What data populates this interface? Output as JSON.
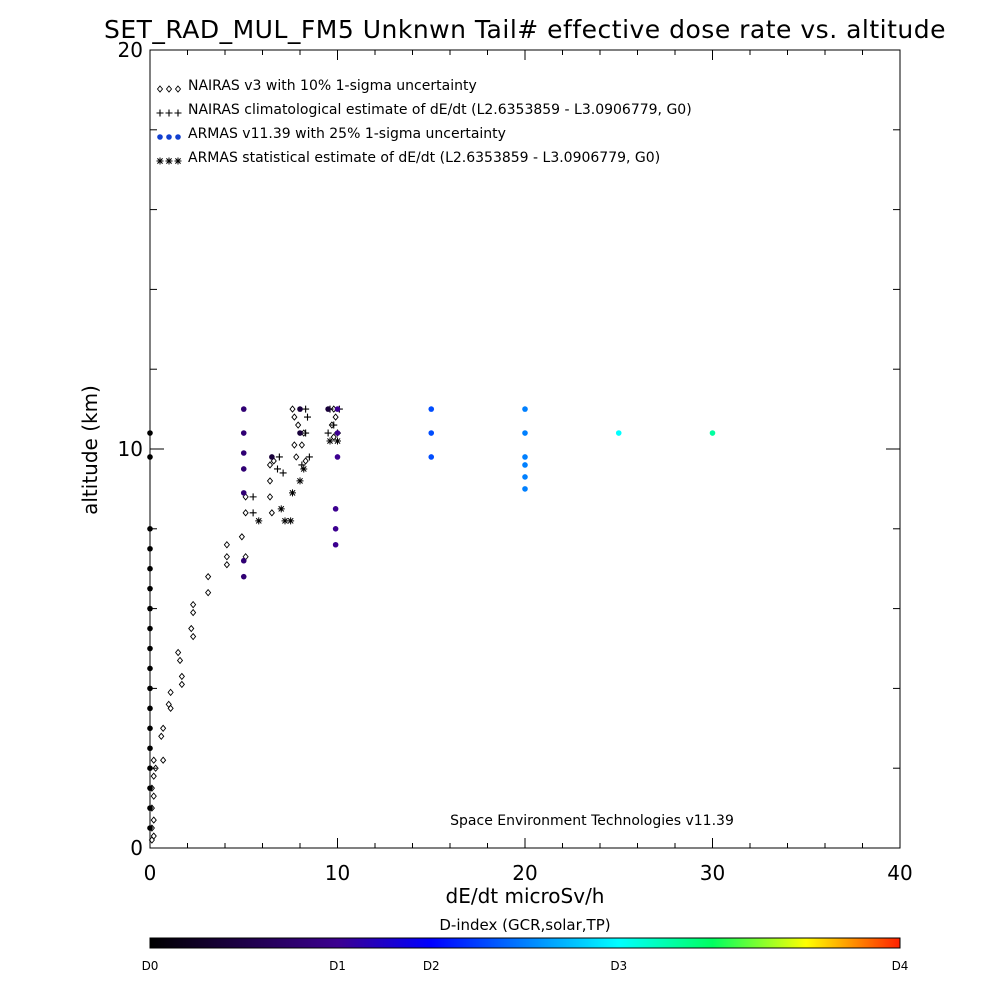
{
  "chart_data": {
    "type": "scatter",
    "title": "SET_RAD_MUL_FM5 Unknwn Tail#  effective dose rate vs. altitude",
    "xlabel": "dE/dt microSv/h",
    "ylabel": "altitude (km)",
    "xlim": [
      0,
      40
    ],
    "ylim": [
      0,
      20
    ],
    "x_ticks": [
      "0",
      "10",
      "20",
      "30",
      "40"
    ],
    "y_ticks": [
      "0",
      "10",
      "20"
    ],
    "grid": false,
    "legend_position": "top-left",
    "legend": [
      {
        "marker": "◇◇◇",
        "label": "NAIRAS v3 with 10% 1-sigma uncertainty"
      },
      {
        "marker": "+++",
        "label": "NAIRAS climatological estimate of dE/dt (L2.6353859 - L3.0906779, G0)"
      },
      {
        "marker": "●●●",
        "label": "ARMAS v11.39 with 25% 1-sigma uncertainty"
      },
      {
        "marker": "✱✱✱",
        "label": "ARMAS statistical estimate of dE/dt (L2.6353859 - L3.0906779, G0)"
      }
    ],
    "annotation": "Space Environment Technologies v11.39",
    "colorbar": {
      "title": "D-index (GCR,solar,TP)",
      "labels": [
        "D0",
        "D1",
        "D2",
        "D3",
        "D4"
      ]
    },
    "series": [
      {
        "name": "NAIRAS v3 with 10% 1-sigma uncertainty",
        "marker": "diamond",
        "points": [
          [
            0.1,
            0.2
          ],
          [
            0.2,
            0.3
          ],
          [
            0.1,
            0.5
          ],
          [
            0.2,
            0.7
          ],
          [
            0.1,
            1.0
          ],
          [
            0.2,
            1.3
          ],
          [
            0.1,
            1.5
          ],
          [
            0.2,
            1.8
          ],
          [
            0.3,
            2.0
          ],
          [
            0.2,
            2.2
          ],
          [
            0.7,
            2.2
          ],
          [
            0.6,
            2.8
          ],
          [
            0.7,
            3.0
          ],
          [
            1.1,
            3.5
          ],
          [
            1.0,
            3.6
          ],
          [
            1.1,
            3.9
          ],
          [
            1.7,
            4.1
          ],
          [
            1.7,
            4.3
          ],
          [
            1.6,
            4.7
          ],
          [
            1.5,
            4.9
          ],
          [
            2.3,
            5.3
          ],
          [
            2.2,
            5.5
          ],
          [
            2.3,
            5.9
          ],
          [
            2.3,
            6.1
          ],
          [
            3.1,
            6.4
          ],
          [
            3.1,
            6.8
          ],
          [
            4.1,
            7.1
          ],
          [
            4.1,
            7.3
          ],
          [
            4.1,
            7.6
          ],
          [
            5.1,
            7.3
          ],
          [
            4.9,
            7.8
          ],
          [
            5.1,
            8.4
          ],
          [
            5.1,
            8.8
          ],
          [
            6.5,
            8.4
          ],
          [
            6.4,
            8.8
          ],
          [
            6.4,
            9.2
          ],
          [
            6.4,
            9.6
          ],
          [
            7.8,
            9.8
          ],
          [
            7.7,
            10.1
          ],
          [
            8.1,
            10.1
          ],
          [
            7.9,
            10.6
          ],
          [
            7.7,
            10.8
          ],
          [
            7.6,
            11.0
          ],
          [
            9.8,
            10.3
          ],
          [
            9.7,
            10.6
          ],
          [
            9.9,
            10.8
          ],
          [
            9.8,
            11.0
          ],
          [
            8.2,
            10.4
          ],
          [
            6.6,
            9.7
          ],
          [
            8.3,
            9.7
          ]
        ]
      },
      {
        "name": "NAIRAS climatological estimate of dE/dt (L2.6353859 - L3.0906779, G0)",
        "marker": "plus",
        "points": [
          [
            5.5,
            8.8
          ],
          [
            5.5,
            8.4
          ],
          [
            6.8,
            9.5
          ],
          [
            6.9,
            9.8
          ],
          [
            7.1,
            9.4
          ],
          [
            8.4,
            10.8
          ],
          [
            8.3,
            10.4
          ],
          [
            8.3,
            11.0
          ],
          [
            8.5,
            9.8
          ],
          [
            8.1,
            9.6
          ],
          [
            9.6,
            11.0
          ],
          [
            9.5,
            10.4
          ],
          [
            10.0,
            10.4
          ],
          [
            10.1,
            11.0
          ],
          [
            9.8,
            10.6
          ]
        ]
      },
      {
        "name": "ARMAS v11.39 with 25% 1-sigma uncertainty",
        "marker": "filled-circle",
        "colored_by": "D-index",
        "points": [
          {
            "x": 0.0,
            "y": 10.4,
            "d": 0.0
          },
          {
            "x": 0.0,
            "y": 9.8,
            "d": 0.0
          },
          {
            "x": 0.0,
            "y": 8.0,
            "d": 0.0
          },
          {
            "x": 0.0,
            "y": 7.5,
            "d": 0.0
          },
          {
            "x": 0.0,
            "y": 7.0,
            "d": 0.0
          },
          {
            "x": 0.0,
            "y": 6.5,
            "d": 0.0
          },
          {
            "x": 0.0,
            "y": 6.0,
            "d": 0.0
          },
          {
            "x": 0.0,
            "y": 5.5,
            "d": 0.0
          },
          {
            "x": 0.0,
            "y": 5.0,
            "d": 0.0
          },
          {
            "x": 0.0,
            "y": 4.5,
            "d": 0.0
          },
          {
            "x": 0.0,
            "y": 4.0,
            "d": 0.0
          },
          {
            "x": 0.0,
            "y": 3.5,
            "d": 0.0
          },
          {
            "x": 0.0,
            "y": 3.0,
            "d": 0.0
          },
          {
            "x": 0.0,
            "y": 2.5,
            "d": 0.0
          },
          {
            "x": 0.0,
            "y": 2.0,
            "d": 0.0
          },
          {
            "x": 0.0,
            "y": 1.5,
            "d": 0.0
          },
          {
            "x": 0.0,
            "y": 1.0,
            "d": 0.0
          },
          {
            "x": 0.0,
            "y": 0.5,
            "d": 0.0
          },
          {
            "x": 5.0,
            "y": 11.0,
            "d": 0.8
          },
          {
            "x": 5.0,
            "y": 10.4,
            "d": 0.8
          },
          {
            "x": 5.0,
            "y": 9.9,
            "d": 0.8
          },
          {
            "x": 5.0,
            "y": 9.5,
            "d": 0.8
          },
          {
            "x": 5.0,
            "y": 8.9,
            "d": 0.8
          },
          {
            "x": 5.0,
            "y": 7.2,
            "d": 0.8
          },
          {
            "x": 5.0,
            "y": 6.8,
            "d": 0.8
          },
          {
            "x": 6.5,
            "y": 9.8,
            "d": 0.4
          },
          {
            "x": 8.0,
            "y": 10.4,
            "d": 0.4
          },
          {
            "x": 8.0,
            "y": 11.0,
            "d": 0.4
          },
          {
            "x": 9.5,
            "y": 11.0,
            "d": 0.4
          },
          {
            "x": 10.0,
            "y": 11.0,
            "d": 1.0
          },
          {
            "x": 10.0,
            "y": 10.4,
            "d": 1.0
          },
          {
            "x": 10.0,
            "y": 9.8,
            "d": 1.0
          },
          {
            "x": 9.9,
            "y": 8.5,
            "d": 1.0
          },
          {
            "x": 9.9,
            "y": 8.0,
            "d": 1.0
          },
          {
            "x": 9.9,
            "y": 7.6,
            "d": 1.0
          },
          {
            "x": 15.0,
            "y": 11.0,
            "d": 1.8
          },
          {
            "x": 15.0,
            "y": 10.4,
            "d": 1.8
          },
          {
            "x": 15.0,
            "y": 9.8,
            "d": 1.8
          },
          {
            "x": 20.0,
            "y": 11.0,
            "d": 2.0
          },
          {
            "x": 20.0,
            "y": 10.4,
            "d": 2.0
          },
          {
            "x": 20.0,
            "y": 9.8,
            "d": 2.0
          },
          {
            "x": 20.0,
            "y": 9.6,
            "d": 2.0
          },
          {
            "x": 20.0,
            "y": 9.3,
            "d": 2.0
          },
          {
            "x": 20.0,
            "y": 9.0,
            "d": 2.0
          },
          {
            "x": 25.0,
            "y": 10.4,
            "d": 2.5
          },
          {
            "x": 30.0,
            "y": 10.4,
            "d": 2.8
          }
        ]
      },
      {
        "name": "ARMAS statistical estimate of dE/dt (L2.6353859 - L3.0906779, G0)",
        "marker": "asterisk",
        "points": [
          [
            5.8,
            8.2
          ],
          [
            7.2,
            8.2
          ],
          [
            7.5,
            8.2
          ],
          [
            7.6,
            8.9
          ],
          [
            7.0,
            8.5
          ],
          [
            8.0,
            9.2
          ],
          [
            8.2,
            9.5
          ],
          [
            9.6,
            10.2
          ],
          [
            10.0,
            10.2
          ]
        ]
      }
    ]
  }
}
